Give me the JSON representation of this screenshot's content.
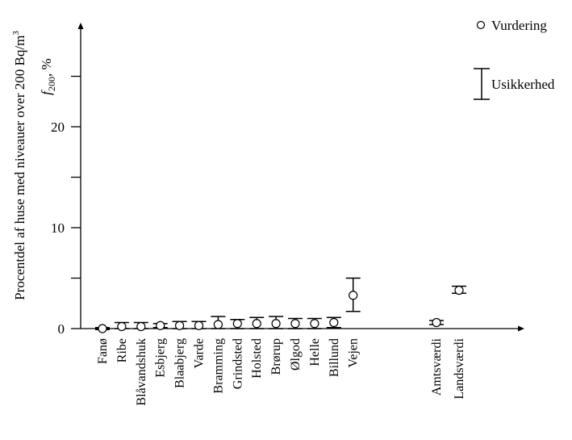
{
  "chart_data": {
    "type": "scatter",
    "title": "",
    "ylabel_main": "Procentdel af huse med niveauer over 200 Bq/m",
    "ylabel_main_sup": "3",
    "ylabel_symbol": "f",
    "ylabel_symbol_sub": "200",
    "ylabel_unit": ", %",
    "xlabel": "",
    "ylim": [
      0,
      30
    ],
    "yticks": [
      0,
      5,
      10,
      15,
      20,
      25
    ],
    "ytick_labels": [
      "0",
      "10",
      "20"
    ],
    "ytick_labeled_values": [
      0,
      10,
      20
    ],
    "grid": false,
    "legend": {
      "position": "top-right",
      "point_label": "Vurdering",
      "errorbar_label": "Usikkerhed"
    },
    "points": [
      {
        "category": "Fanø",
        "value": 0.0,
        "low": -0.1,
        "high": 0.1
      },
      {
        "category": "Ribe",
        "value": 0.2,
        "low": 0.0,
        "high": 0.6
      },
      {
        "category": "Blåvandshuk",
        "value": 0.2,
        "low": 0.0,
        "high": 0.6
      },
      {
        "category": "Esbjerg",
        "value": 0.3,
        "low": 0.1,
        "high": 0.5
      },
      {
        "category": "Blaabjerg",
        "value": 0.3,
        "low": 0.0,
        "high": 0.7
      },
      {
        "category": "Varde",
        "value": 0.3,
        "low": 0.0,
        "high": 0.7
      },
      {
        "category": "Bramming",
        "value": 0.4,
        "low": 0.0,
        "high": 1.2
      },
      {
        "category": "Grindsted",
        "value": 0.5,
        "low": 0.0,
        "high": 0.9
      },
      {
        "category": "Holsted",
        "value": 0.5,
        "low": 0.0,
        "high": 1.1
      },
      {
        "category": "Brørup",
        "value": 0.5,
        "low": 0.0,
        "high": 1.2
      },
      {
        "category": "Ølgod",
        "value": 0.5,
        "low": 0.0,
        "high": 1.0
      },
      {
        "category": "Helle",
        "value": 0.5,
        "low": 0.0,
        "high": 1.0
      },
      {
        "category": "Billund",
        "value": 0.6,
        "low": 0.1,
        "high": 1.1
      },
      {
        "category": "Vejen",
        "value": 3.3,
        "low": 1.7,
        "high": 5.0
      },
      {
        "category": "Amtsværdi",
        "value": 0.6,
        "low": 0.4,
        "high": 0.8
      },
      {
        "category": "Landsværdi",
        "value": 3.8,
        "low": 3.5,
        "high": 4.2
      }
    ]
  }
}
